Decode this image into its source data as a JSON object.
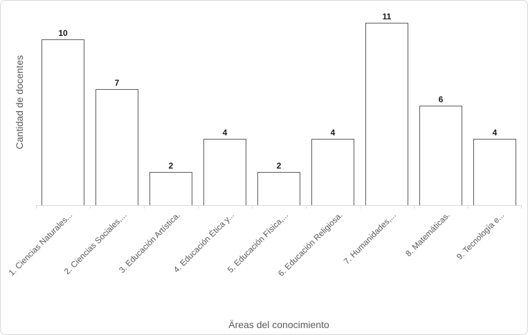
{
  "chart_data": {
    "type": "bar",
    "categories": [
      "1. Ciencias Naturales...",
      "2. Ciencias Sociales,...",
      "3. Educación Artística.",
      "4. Educación Ética y...",
      "5. Educación Física,...",
      "6. Educación Religiosa.",
      "7. Humanidades,...",
      "8. Matemáticas.",
      "9. Tecnología e..."
    ],
    "values": [
      10,
      7,
      2,
      4,
      2,
      4,
      11,
      6,
      4
    ],
    "title": "",
    "xlabel": "Äreas del conocimiento",
    "ylabel": "Cantidad de docentes",
    "ylim": [
      0,
      12
    ],
    "grid": false,
    "legend": null,
    "data_labels": true,
    "colors": {
      "bar_fill": "#ffffff",
      "bar_border": "#595959",
      "axis_line": "#d9d9d9",
      "axis_text": "#595959",
      "data_label_text": "#1a1a1a",
      "frame_border": "#d7d7d7"
    }
  }
}
